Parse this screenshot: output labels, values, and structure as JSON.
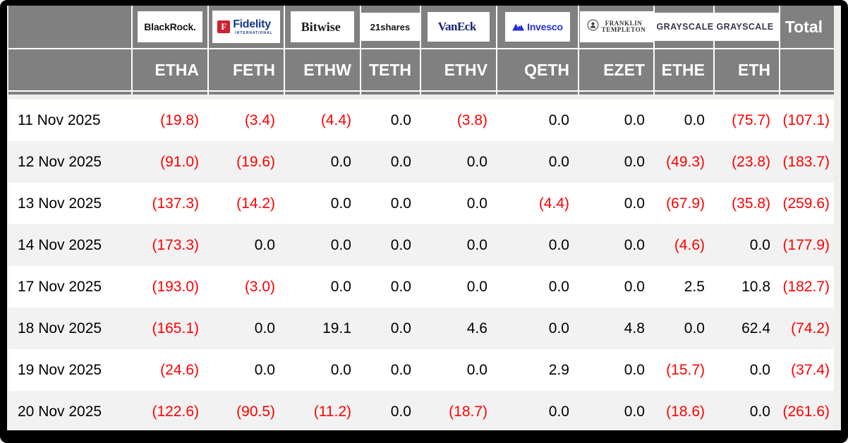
{
  "table": {
    "total_label": "Total",
    "funds": [
      {
        "id": "blackrock",
        "issuer": "BlackRock",
        "ticker": "ETHA",
        "logo_text": "BlackRock."
      },
      {
        "id": "fidelity",
        "issuer": "Fidelity International",
        "ticker": "FETH",
        "logo_mark": "F",
        "logo_text": "Fidelity",
        "logo_sup": "™",
        "logo_sub": "INTERNATIONAL"
      },
      {
        "id": "bitwise",
        "issuer": "Bitwise",
        "ticker": "ETHW",
        "logo_text": "Bitwise",
        "logo_sup": "®"
      },
      {
        "id": "21shares",
        "issuer": "21Shares",
        "ticker": "TETH",
        "logo_text": "21shares",
        "logo_sup": "˙"
      },
      {
        "id": "vaneck",
        "issuer": "VanEck",
        "ticker": "ETHV",
        "logo_text": "VanEck",
        "logo_sup": "®"
      },
      {
        "id": "invesco",
        "issuer": "Invesco",
        "ticker": "QETH",
        "logo_text": "Invesco"
      },
      {
        "id": "franklin",
        "issuer": "Franklin Templeton",
        "ticker": "EZET",
        "logo_line1": "FRANKLIN",
        "logo_line2": "TEMPLETON"
      },
      {
        "id": "grayscale-ethe",
        "issuer": "Grayscale",
        "ticker": "ETHE",
        "logo_text": "GRAYSCALE",
        "logo_sup": "™"
      },
      {
        "id": "grayscale-eth",
        "issuer": "Grayscale",
        "ticker": "ETH",
        "logo_text": "GRAYSCALE",
        "logo_sup": "™"
      }
    ],
    "rows": [
      {
        "date": "11 Nov 2025",
        "values": [
          "(19.8)",
          "(3.4)",
          "(4.4)",
          "0.0",
          "(3.8)",
          "0.0",
          "0.0",
          "0.0",
          "(75.7)"
        ],
        "total": "(107.1)"
      },
      {
        "date": "12 Nov 2025",
        "values": [
          "(91.0)",
          "(19.6)",
          "0.0",
          "0.0",
          "0.0",
          "0.0",
          "0.0",
          "(49.3)",
          "(23.8)"
        ],
        "total": "(183.7)"
      },
      {
        "date": "13 Nov 2025",
        "values": [
          "(137.3)",
          "(14.2)",
          "0.0",
          "0.0",
          "0.0",
          "(4.4)",
          "0.0",
          "(67.9)",
          "(35.8)"
        ],
        "total": "(259.6)"
      },
      {
        "date": "14 Nov 2025",
        "values": [
          "(173.3)",
          "0.0",
          "0.0",
          "0.0",
          "0.0",
          "0.0",
          "0.0",
          "(4.6)",
          "0.0"
        ],
        "total": "(177.9)"
      },
      {
        "date": "17 Nov 2025",
        "values": [
          "(193.0)",
          "(3.0)",
          "0.0",
          "0.0",
          "0.0",
          "0.0",
          "0.0",
          "2.5",
          "10.8"
        ],
        "total": "(182.7)"
      },
      {
        "date": "18 Nov 2025",
        "values": [
          "(165.1)",
          "0.0",
          "19.1",
          "0.0",
          "4.6",
          "0.0",
          "4.8",
          "0.0",
          "62.4"
        ],
        "total": "(74.2)"
      },
      {
        "date": "19 Nov 2025",
        "values": [
          "(24.6)",
          "0.0",
          "0.0",
          "0.0",
          "0.0",
          "2.9",
          "0.0",
          "(15.7)",
          "0.0"
        ],
        "total": "(37.4)"
      },
      {
        "date": "20 Nov 2025",
        "values": [
          "(122.6)",
          "(90.5)",
          "(11.2)",
          "0.0",
          "(18.7)",
          "0.0",
          "0.0",
          "(18.6)",
          "0.0"
        ],
        "total": "(261.6)"
      }
    ],
    "colors": {
      "negative": "#fe0000",
      "positive": "#000000",
      "header_bg": "#808080",
      "row_alt": "#f2f2f2"
    }
  }
}
